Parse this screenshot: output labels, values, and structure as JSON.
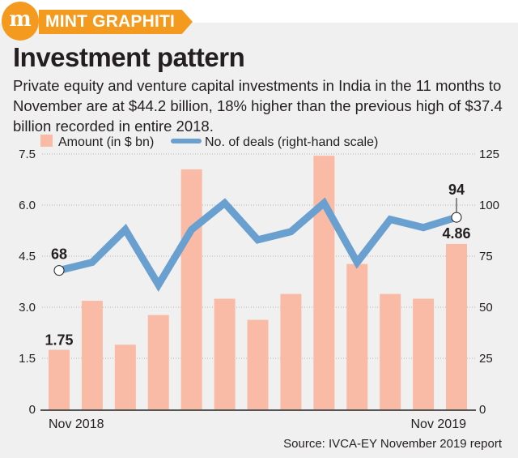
{
  "header": {
    "brand_logo": "m",
    "brand": "MINT GRAPHITI",
    "title": "Investment pattern",
    "subtitle": "Private equity and venture capital investments in India in the 11 months to November are at $44.2 billion, 18% higher than the previous high of $37.4 billion recorded in entire 2018."
  },
  "source": "Source: IVCA-EY November 2019 report",
  "chart_data": {
    "type": "bar+line",
    "categories": [
      "Nov 2018",
      "",
      "",
      "",
      "",
      "",
      "",
      "",
      "",
      "",
      "",
      "",
      "Nov 2019"
    ],
    "series": [
      {
        "name": "Amount (in $ bn)",
        "type": "bar",
        "axis": "left",
        "color": "#f9bba5",
        "values": [
          1.75,
          3.19,
          1.9,
          2.77,
          7.05,
          3.25,
          2.63,
          3.39,
          7.45,
          4.27,
          3.39,
          3.25,
          4.86
        ]
      },
      {
        "name": "No. of deals (right-hand scale)",
        "type": "line",
        "axis": "right",
        "color": "#6aa0cf",
        "values": [
          68,
          72,
          88,
          61,
          88,
          101,
          83,
          87,
          101,
          72,
          93,
          89,
          94
        ]
      }
    ],
    "left_axis": {
      "ylim": [
        0,
        7.5
      ],
      "ticks": [
        "0",
        "1.5",
        "3.0",
        "4.5",
        "6.0",
        "7.5"
      ]
    },
    "right_axis": {
      "ylim": [
        0,
        125
      ],
      "ticks": [
        "0",
        "25",
        "50",
        "75",
        "100",
        "125"
      ]
    },
    "x_tick_labels": [
      "Nov 2018",
      "Nov 2019"
    ],
    "data_labels": {
      "bar_first": "1.75",
      "bar_last": "4.86",
      "line_first": "68",
      "line_last": "94"
    },
    "grid": "horizontal dotted",
    "legend": "top-left"
  }
}
